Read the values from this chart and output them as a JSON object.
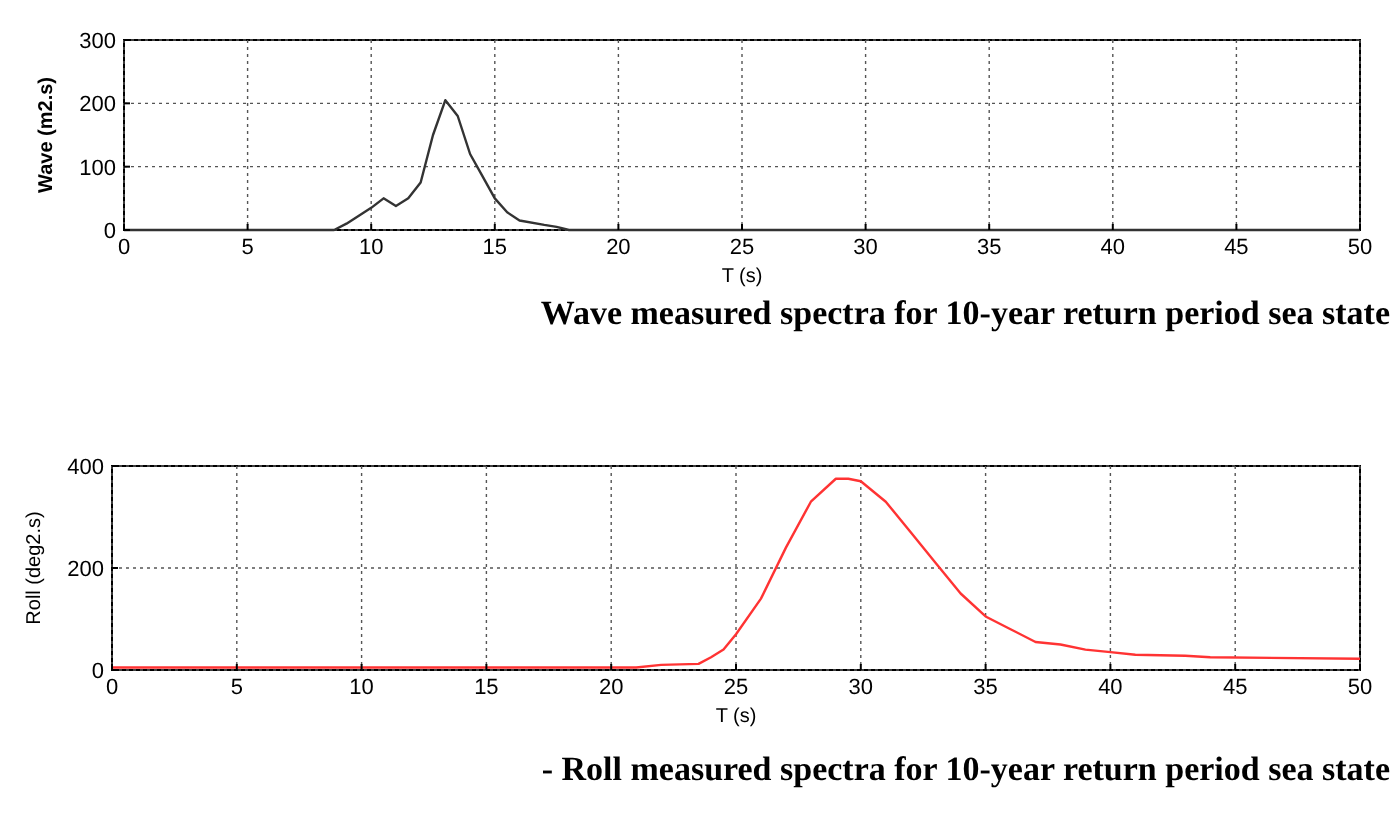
{
  "chart_data": [
    {
      "type": "line",
      "xlabel": "T (s)",
      "ylabel": "Wave (m2.s)",
      "annotations": [
        "Wave measured spectra for 10-year return period sea state"
      ],
      "xlim": [
        0,
        50
      ],
      "xticks": [
        0,
        5,
        10,
        15,
        20,
        25,
        30,
        35,
        40,
        45,
        50
      ],
      "ylim": [
        0,
        300
      ],
      "yticks": [
        0,
        100,
        200,
        300
      ],
      "grid": true,
      "line_style": "solid",
      "series": [
        {
          "color": "#333333",
          "x": [
            0,
            8.5,
            9,
            10,
            10.5,
            11,
            11.5,
            12,
            12.5,
            13,
            13.5,
            14,
            14.5,
            15,
            15.5,
            16,
            17,
            17.5,
            18,
            50
          ],
          "values": [
            0,
            0,
            10,
            35,
            50,
            38,
            50,
            75,
            150,
            205,
            180,
            120,
            85,
            50,
            28,
            15,
            8,
            5,
            0,
            0
          ]
        }
      ]
    },
    {
      "type": "line",
      "xlabel": "T (s)",
      "ylabel": "Roll (deg2.s)",
      "annotations": [
        "- Roll measured spectra for 10-year return period sea state"
      ],
      "xlim": [
        0,
        50
      ],
      "xticks": [
        0,
        5,
        10,
        15,
        20,
        25,
        30,
        35,
        40,
        45,
        50
      ],
      "ylim": [
        0,
        400
      ],
      "yticks": [
        0,
        200,
        400
      ],
      "grid": true,
      "line_style": "solid",
      "series": [
        {
          "color": "#ff3333",
          "x": [
            0,
            21,
            22,
            23.5,
            24,
            24.5,
            25,
            26,
            27,
            28,
            29,
            29.5,
            30,
            31,
            32,
            33,
            34,
            35,
            36,
            37,
            38,
            39,
            40,
            41,
            43,
            44,
            50
          ],
          "values": [
            5,
            5,
            10,
            12,
            25,
            40,
            70,
            140,
            240,
            330,
            375,
            375,
            370,
            330,
            270,
            210,
            150,
            105,
            80,
            55,
            50,
            40,
            35,
            30,
            28,
            25,
            22
          ]
        }
      ]
    }
  ]
}
